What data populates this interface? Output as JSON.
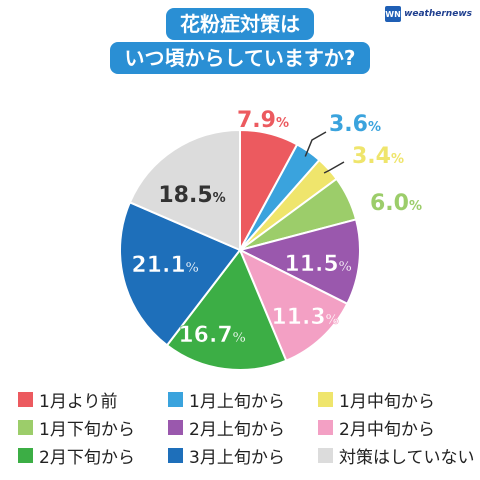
{
  "header": {
    "title_lines": [
      "花粉症対策は",
      "いつ頃からしていますか?"
    ],
    "logo_mark": "WN",
    "logo_text": "weathernews"
  },
  "chart_data": {
    "type": "pie",
    "unit": "%",
    "start_angle_deg": 0,
    "direction": "clockwise",
    "slices": [
      {
        "label": "1月より前",
        "value": 7.9,
        "display": "7.9",
        "color": "#ec5a5f"
      },
      {
        "label": "1月上旬から",
        "value": 3.6,
        "display": "3.6",
        "color": "#3aa3dd"
      },
      {
        "label": "1月中旬から",
        "value": 3.4,
        "display": "3.4",
        "color": "#efe56c"
      },
      {
        "label": "1月下旬から",
        "value": 6.0,
        "display": "6.0",
        "color": "#9ccd6a"
      },
      {
        "label": "2月上旬から",
        "value": 11.5,
        "display": "11.5",
        "color": "#9a58ad"
      },
      {
        "label": "2月中旬から",
        "value": 11.3,
        "display": "11.3",
        "color": "#f3a0c4"
      },
      {
        "label": "2月下旬から",
        "value": 16.7,
        "display": "16.7",
        "color": "#3cae45"
      },
      {
        "label": "3月上旬から",
        "value": 21.1,
        "display": "21.1",
        "color": "#1e6fba"
      },
      {
        "label": "対策はしていない",
        "value": 18.5,
        "display": "18.5",
        "color": "#dcdcdc"
      }
    ]
  }
}
